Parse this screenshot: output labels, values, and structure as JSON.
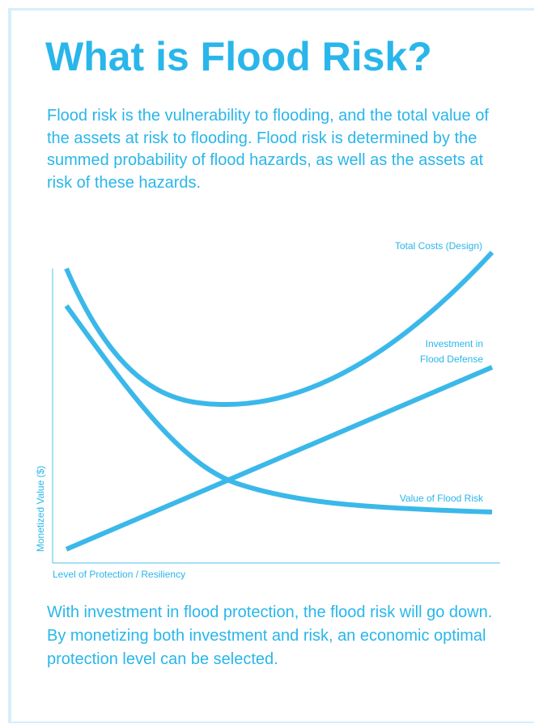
{
  "title": "What is Flood Risk?",
  "intro": "Flood risk is the vulnerability to flooding, and the total value of the assets at risk to flooding.  Flood risk is determined by the summed probability of flood hazards, as well as the assets at risk of these hazards.",
  "outro": "With investment in flood protection, the flood risk will go down.  By monetizing both investment and risk, an economic optimal protection level can be selected.",
  "colors": {
    "accent": "#29b6ea",
    "border": "#d6eefa"
  },
  "chart_data": {
    "type": "line",
    "xlabel": "Level of Protection / Resiliency",
    "ylabel": "Monetized Value ($)",
    "grid": false,
    "series": [
      {
        "name": "Total Costs (Design)",
        "shape": "U-shaped curve: high at low protection, minimum at moderate protection, rising steeply at high protection"
      },
      {
        "name_lines": [
          "Investment in",
          "Flood Defense"
        ],
        "shape": "straight line increasing with level of protection"
      },
      {
        "name": "Value of Flood Risk",
        "shape": "decreasing curve that flattens at high protection"
      }
    ]
  }
}
